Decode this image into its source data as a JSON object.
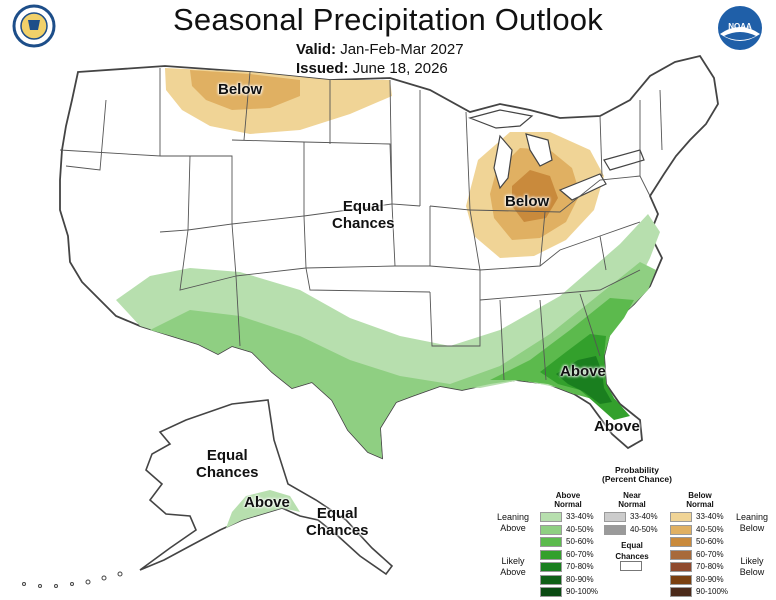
{
  "header": {
    "title": "Seasonal Precipitation Outlook",
    "valid_label": "Valid:",
    "valid_value": "Jan-Feb-Mar 2027",
    "issued_label": "Issued:",
    "issued_value": "June 18, 2026"
  },
  "logos": {
    "left": "doc-seal",
    "right": "noaa-logo",
    "right_text": "NOAA"
  },
  "map_labels": {
    "below_north": "Below",
    "below_great_lakes": "Below",
    "equal_chances_conus_1": "Equal",
    "equal_chances_conus_2": "Chances",
    "above_southeast": "Above",
    "above_florida": "Above",
    "equal_chances_alaska_1": "Equal",
    "equal_chances_alaska_2": "Chances",
    "above_alaska": "Above",
    "equal_chances_se_alaska_1": "Equal",
    "equal_chances_se_alaska_2": "Chances"
  },
  "legend": {
    "title_1": "Probability",
    "title_2": "(Percent Chance)",
    "above_header_1": "Above",
    "above_header_2": "Normal",
    "near_header_1": "Near",
    "near_header_2": "Normal",
    "below_header_1": "Below",
    "below_header_2": "Normal",
    "leaning_above_1": "Leaning",
    "leaning_above_2": "Above",
    "likely_above_1": "Likely",
    "likely_above_2": "Above",
    "leaning_below_1": "Leaning",
    "leaning_below_2": "Below",
    "likely_below_1": "Likely",
    "likely_below_2": "Below",
    "equal_chances_1": "Equal",
    "equal_chances_2": "Chances",
    "above_ranges": [
      "33-40%",
      "40-50%",
      "50-60%",
      "60-70%",
      "70-80%",
      "80-90%",
      "90-100%"
    ],
    "near_ranges": [
      "33-40%",
      "40-50%"
    ],
    "below_ranges": [
      "33-40%",
      "40-50%",
      "50-60%",
      "60-70%",
      "70-80%",
      "80-90%",
      "90-100%"
    ]
  },
  "colors": {
    "above": [
      "#b7dfae",
      "#8fcf82",
      "#5cba4d",
      "#33a02c",
      "#1a7f1f",
      "#0f5f16",
      "#0a4a12"
    ],
    "near": [
      "#cccccc",
      "#9a9a9a"
    ],
    "below": [
      "#f0d496",
      "#e0b062",
      "#c98a3c",
      "#a86a3a",
      "#8f4a2e",
      "#7a4010",
      "#4b2a1a"
    ],
    "equal_chances": "#ffffff"
  }
}
